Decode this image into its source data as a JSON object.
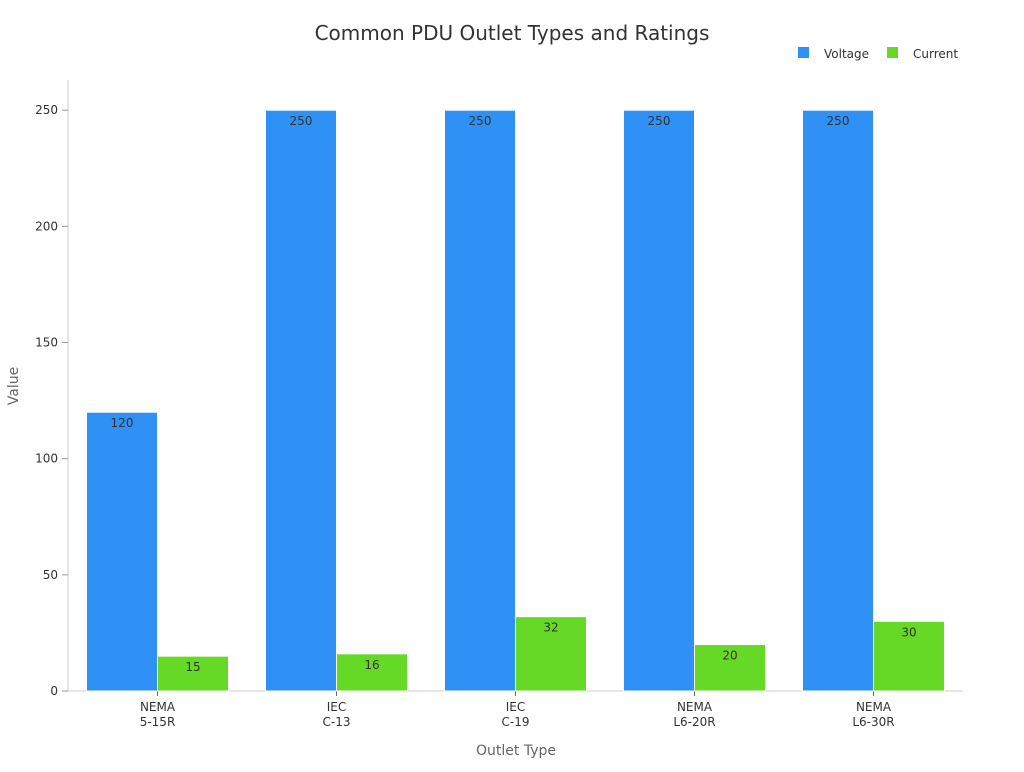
{
  "chart_data": {
    "type": "bar",
    "title": "Common PDU Outlet Types and Ratings",
    "xlabel": "Outlet Type",
    "ylabel": "Value",
    "categories": [
      [
        "NEMA",
        "5-15R"
      ],
      [
        "IEC",
        "C-13"
      ],
      [
        "IEC",
        "C-19"
      ],
      [
        "NEMA",
        "L6-20R"
      ],
      [
        "NEMA",
        "L6-30R"
      ]
    ],
    "series": [
      {
        "name": "Voltage",
        "color": "#2f91f6",
        "values": [
          120,
          250,
          250,
          250,
          250
        ]
      },
      {
        "name": "Current",
        "color": "#66d926",
        "values": [
          15,
          16,
          32,
          20,
          30
        ]
      }
    ],
    "ylim": [
      0,
      263
    ],
    "yticks": [
      0,
      50,
      100,
      150,
      200,
      250
    ],
    "grid": false,
    "legend": "top-right",
    "data_labels": true
  }
}
